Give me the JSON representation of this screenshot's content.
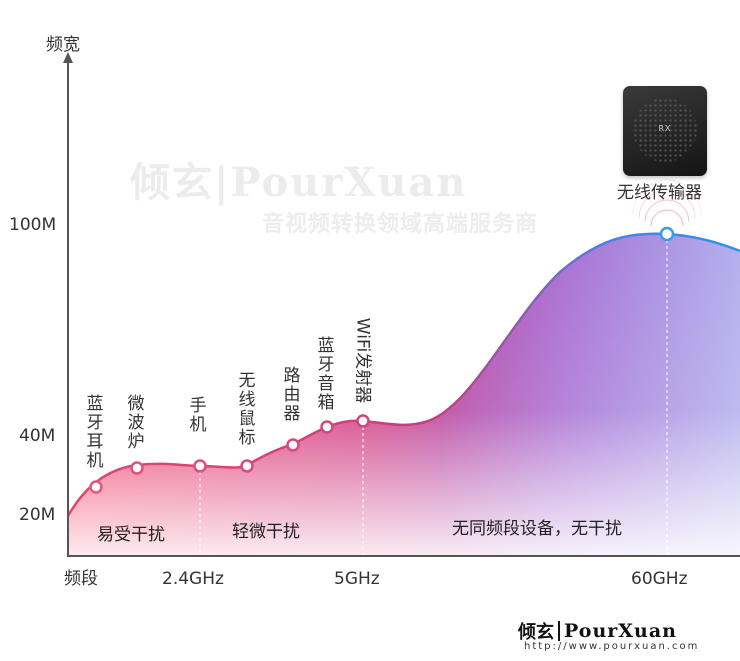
{
  "axes": {
    "y_title": "频宽",
    "x_title": "频段",
    "y_ticks": [
      "100M",
      "40M",
      "20M"
    ],
    "x_ticks": [
      "2.4GHz",
      "5GHz",
      "60GHz"
    ]
  },
  "watermark": {
    "brand": "倾玄|PourXuan",
    "tagline": "音视频转换领域高端服务商"
  },
  "devices": [
    {
      "label": "蓝牙耳机"
    },
    {
      "label": "微波炉"
    },
    {
      "label": "手机"
    },
    {
      "label": "无线鼠标"
    },
    {
      "label": "路由器"
    },
    {
      "label": "蓝牙音箱"
    },
    {
      "label": "WiFi发射器"
    }
  ],
  "peak_device": {
    "label": "无线传输器",
    "badge": "RX"
  },
  "zones": {
    "z1": "易受干扰",
    "z2": "轻微干扰",
    "z3": "无同频段设备，无干扰"
  },
  "footer": {
    "logo_cn": "倾玄",
    "logo_en": "PourXuan",
    "url": "http://www.pourxuan.com"
  },
  "colors": {
    "low_band": "#f0345f",
    "mid_band": "#d63a78",
    "high_band": "#6a4fd8",
    "curve_stroke_low": "#e24a7a",
    "curve_stroke_high": "#3b8ee8",
    "point_fill": "#ffffff"
  }
}
